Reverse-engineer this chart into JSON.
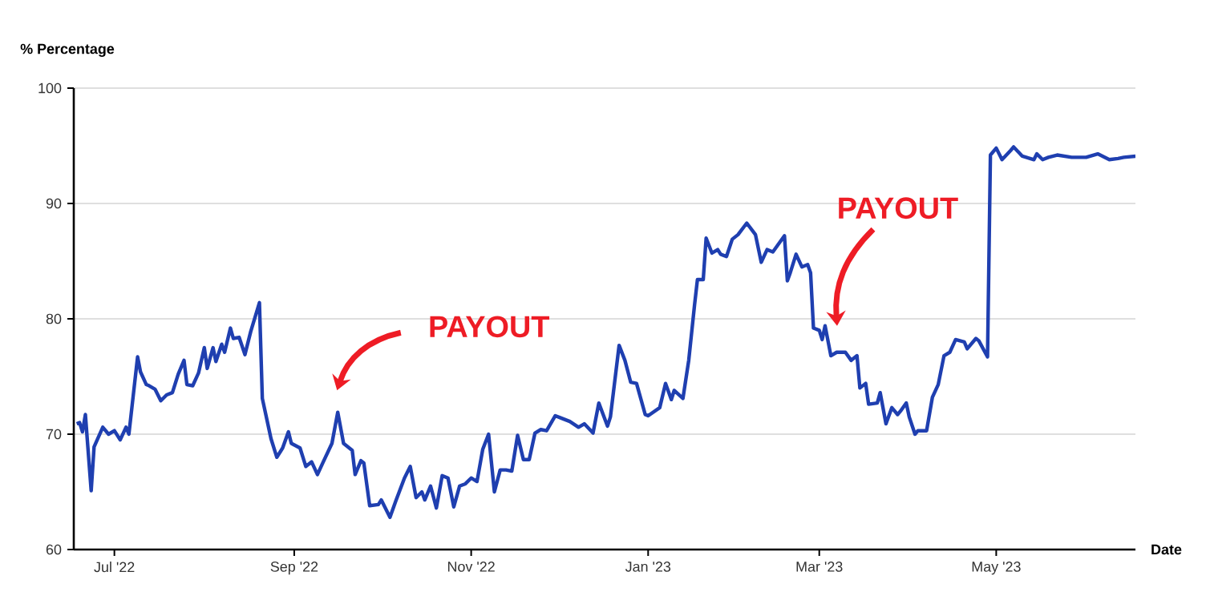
{
  "chart_data": {
    "type": "line",
    "ylabel": "% Percentage",
    "xlabel": "Date",
    "xlim": [
      "2022-06-17",
      "2023-06-18"
    ],
    "ylim": [
      60,
      100
    ],
    "xticks": [
      {
        "value": "2022-07-01",
        "label": "Jul '22"
      },
      {
        "value": "2022-09-01",
        "label": "Sep '22"
      },
      {
        "value": "2022-11-01",
        "label": "Nov '22"
      },
      {
        "value": "2023-01-01",
        "label": "Jan '23"
      },
      {
        "value": "2023-03-01",
        "label": "Mar '23"
      },
      {
        "value": "2023-05-01",
        "label": "May '23"
      }
    ],
    "yticks": [
      60,
      70,
      80,
      90,
      100
    ],
    "grid": "y",
    "color": "#1f3fb0",
    "annotations": [
      "PAYOUT",
      "PAYOUT"
    ],
    "x": [
      "2022-06-18",
      "2022-06-19",
      "2022-06-20",
      "2022-06-21",
      "2022-06-23",
      "2022-06-24",
      "2022-06-27",
      "2022-06-29",
      "2022-07-01",
      "2022-07-03",
      "2022-07-05",
      "2022-07-06",
      "2022-07-09",
      "2022-07-10",
      "2022-07-12",
      "2022-07-13",
      "2022-07-15",
      "2022-07-17",
      "2022-07-19",
      "2022-07-21",
      "2022-07-23",
      "2022-07-25",
      "2022-07-26",
      "2022-07-28",
      "2022-07-30",
      "2022-08-01",
      "2022-08-02",
      "2022-08-04",
      "2022-08-05",
      "2022-08-07",
      "2022-08-08",
      "2022-08-10",
      "2022-08-11",
      "2022-08-13",
      "2022-08-15",
      "2022-08-17",
      "2022-08-20",
      "2022-08-21",
      "2022-08-24",
      "2022-08-26",
      "2022-08-28",
      "2022-08-30",
      "2022-08-31",
      "2022-09-03",
      "2022-09-05",
      "2022-09-07",
      "2022-09-09",
      "2022-09-11",
      "2022-09-14",
      "2022-09-16",
      "2022-09-18",
      "2022-09-21",
      "2022-09-22",
      "2022-09-24",
      "2022-09-25",
      "2022-09-27",
      "2022-09-30",
      "2022-10-01",
      "2022-10-04",
      "2022-10-06",
      "2022-10-09",
      "2022-10-11",
      "2022-10-13",
      "2022-10-15",
      "2022-10-16",
      "2022-10-18",
      "2022-10-20",
      "2022-10-22",
      "2022-10-24",
      "2022-10-26",
      "2022-10-28",
      "2022-10-30",
      "2022-11-01",
      "2022-11-03",
      "2022-11-05",
      "2022-11-07",
      "2022-11-09",
      "2022-11-11",
      "2022-11-13",
      "2022-11-15",
      "2022-11-17",
      "2022-11-19",
      "2022-11-21",
      "2022-11-23",
      "2022-11-25",
      "2022-11-27",
      "2022-11-30",
      "2022-12-02",
      "2022-12-05",
      "2022-12-08",
      "2022-12-10",
      "2022-12-13",
      "2022-12-15",
      "2022-12-18",
      "2022-12-19",
      "2022-12-22",
      "2022-12-24",
      "2022-12-26",
      "2022-12-28",
      "2022-12-31",
      "2023-01-01",
      "2023-01-05",
      "2023-01-07",
      "2023-01-09",
      "2023-01-10",
      "2023-01-13",
      "2023-01-15",
      "2023-01-17",
      "2023-01-18",
      "2023-01-20",
      "2023-01-21",
      "2023-01-23",
      "2023-01-25",
      "2023-01-26",
      "2023-01-28",
      "2023-01-30",
      "2023-02-01",
      "2023-02-04",
      "2023-02-07",
      "2023-02-09",
      "2023-02-11",
      "2023-02-13",
      "2023-02-17",
      "2023-02-18",
      "2023-02-19",
      "2023-02-21",
      "2023-02-23",
      "2023-02-25",
      "2023-02-26",
      "2023-02-27",
      "2023-03-01",
      "2023-03-02",
      "2023-03-03",
      "2023-03-05",
      "2023-03-07",
      "2023-03-10",
      "2023-03-12",
      "2023-03-14",
      "2023-03-15",
      "2023-03-17",
      "2023-03-18",
      "2023-03-21",
      "2023-03-22",
      "2023-03-24",
      "2023-03-26",
      "2023-03-28",
      "2023-03-29",
      "2023-03-31",
      "2023-04-01",
      "2023-04-03",
      "2023-04-04",
      "2023-04-07",
      "2023-04-09",
      "2023-04-11",
      "2023-04-13",
      "2023-04-15",
      "2023-04-17",
      "2023-04-20",
      "2023-04-21",
      "2023-04-24",
      "2023-04-25",
      "2023-04-28",
      "2023-04-29",
      "2023-05-01",
      "2023-05-03",
      "2023-05-06",
      "2023-05-07",
      "2023-05-10",
      "2023-05-14",
      "2023-05-15",
      "2023-05-17",
      "2023-05-19",
      "2023-05-22",
      "2023-05-27",
      "2023-06-01",
      "2023-06-05",
      "2023-06-09",
      "2023-06-12",
      "2023-06-14",
      "2023-06-18"
    ],
    "values": [
      70.9,
      71.0,
      70.2,
      71.7,
      65.1,
      68.9,
      70.6,
      70.0,
      70.3,
      69.5,
      70.6,
      70.0,
      76.7,
      75.4,
      74.3,
      74.2,
      73.9,
      72.9,
      73.4,
      73.6,
      75.2,
      76.4,
      74.3,
      74.2,
      75.3,
      77.5,
      75.7,
      77.5,
      76.3,
      77.8,
      77.1,
      79.2,
      78.3,
      78.4,
      76.9,
      78.9,
      81.4,
      73.1,
      69.6,
      68.0,
      68.8,
      70.2,
      69.2,
      68.8,
      67.2,
      67.6,
      66.5,
      67.6,
      69.2,
      71.9,
      69.2,
      68.6,
      66.5,
      67.7,
      67.5,
      63.8,
      63.9,
      64.3,
      62.8,
      64.2,
      66.2,
      67.2,
      64.5,
      65.0,
      64.3,
      65.5,
      63.6,
      66.4,
      66.2,
      63.7,
      65.5,
      65.7,
      66.2,
      65.9,
      68.7,
      70.0,
      65.0,
      66.9,
      66.9,
      66.8,
      69.9,
      67.8,
      67.8,
      70.1,
      70.4,
      70.3,
      71.6,
      71.4,
      71.1,
      70.6,
      70.9,
      70.1,
      72.7,
      70.7,
      71.5,
      77.7,
      76.4,
      74.5,
      74.4,
      71.7,
      71.6,
      72.3,
      74.4,
      73.0,
      73.8,
      73.1,
      76.4,
      81.2,
      83.4,
      83.4,
      87.0,
      85.7,
      86.0,
      85.6,
      85.4,
      86.9,
      87.3,
      88.3,
      87.3,
      84.9,
      86.0,
      85.8,
      87.2,
      83.3,
      84.0,
      85.6,
      84.5,
      84.7,
      84.0,
      79.2,
      79.0,
      78.2,
      79.4,
      76.8,
      77.1,
      77.1,
      76.4,
      76.8,
      74.0,
      74.4,
      72.6,
      72.7,
      73.6,
      70.9,
      72.3,
      71.7,
      72.0,
      72.7,
      71.5,
      70.0,
      70.3,
      70.3,
      73.2,
      74.3,
      76.8,
      77.1,
      78.2,
      78.0,
      77.4,
      78.3,
      78.1,
      76.7,
      94.2,
      94.8,
      93.8,
      94.6,
      94.9,
      94.1,
      93.8,
      94.3,
      93.8,
      94.0,
      94.2,
      94.0,
      94.0,
      94.3,
      93.8,
      93.9,
      94.0,
      94.1
    ]
  }
}
